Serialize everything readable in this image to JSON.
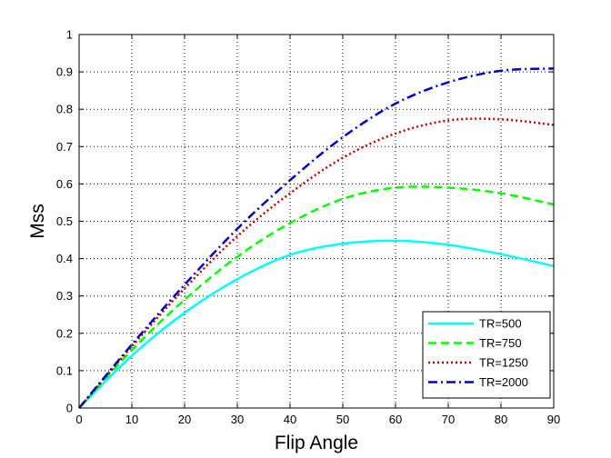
{
  "chart_data": {
    "type": "line",
    "title": "",
    "xlabel": "Flip Angle",
    "ylabel": "Mss",
    "xlim": [
      0,
      90
    ],
    "ylim": [
      0,
      1
    ],
    "xticks": [
      0,
      10,
      20,
      30,
      40,
      50,
      60,
      70,
      80,
      90
    ],
    "yticks": [
      0,
      0.1,
      0.2,
      0.3,
      0.4,
      0.5,
      0.6,
      0.7,
      0.8,
      0.9,
      1
    ],
    "xtick_labels": [
      "0",
      "10",
      "20",
      "30",
      "40",
      "50",
      "60",
      "70",
      "80",
      "90"
    ],
    "ytick_labels": [
      "0",
      "0.1",
      "0.2",
      "0.3",
      "0.4",
      "0.5",
      "0.6",
      "0.7",
      "0.8",
      "0.9",
      "1"
    ],
    "grid": true,
    "legend_position": "bottom-right",
    "x": [
      0,
      10,
      20,
      30,
      40,
      50,
      60,
      70,
      80,
      90
    ],
    "series": [
      {
        "name": "TR=500",
        "color": "#00ffff",
        "style": "solid",
        "values": [
          0,
          0.14,
          0.255,
          0.345,
          0.41,
          0.44,
          0.448,
          0.437,
          0.412,
          0.38
        ]
      },
      {
        "name": "TR=750",
        "color": "#00ff00",
        "style": "dashed",
        "values": [
          0,
          0.155,
          0.29,
          0.405,
          0.495,
          0.56,
          0.59,
          0.59,
          0.575,
          0.545
        ]
      },
      {
        "name": "TR=1250",
        "color": "#c00000",
        "style": "dotted",
        "values": [
          0,
          0.165,
          0.32,
          0.46,
          0.575,
          0.67,
          0.735,
          0.77,
          0.773,
          0.758
        ]
      },
      {
        "name": "TR=2000",
        "color": "#0000c8",
        "style": "dashdot",
        "values": [
          0,
          0.17,
          0.33,
          0.48,
          0.61,
          0.725,
          0.815,
          0.872,
          0.903,
          0.909
        ]
      }
    ]
  }
}
